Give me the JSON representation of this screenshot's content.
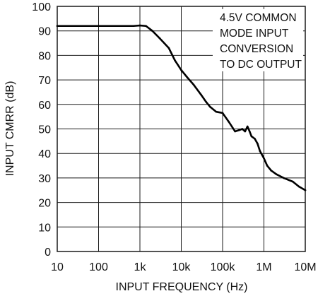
{
  "chart_data": {
    "type": "line",
    "title": "",
    "xlabel": "INPUT FREQUENCY (Hz)",
    "ylabel": "INPUT CMRR (dB)",
    "x_scale": "log",
    "xlim": [
      10,
      10000000
    ],
    "ylim": [
      0,
      100
    ],
    "grid": true,
    "x_ticks": [
      10,
      100,
      1000,
      10000,
      100000,
      1000000,
      10000000
    ],
    "x_tick_labels": [
      "10",
      "100",
      "1k",
      "10k",
      "100k",
      "1M",
      "10M"
    ],
    "y_ticks": [
      0,
      10,
      20,
      30,
      40,
      50,
      60,
      70,
      80,
      90,
      100
    ],
    "y_tick_labels": [
      "0",
      "10",
      "20",
      "30",
      "40",
      "50",
      "60",
      "70",
      "80",
      "90",
      "100"
    ],
    "annotation": [
      "4.5V COMMON",
      "MODE INPUT",
      "CONVERSION",
      "TO DC OUTPUT"
    ],
    "series": [
      {
        "x": [
          10,
          100,
          400,
          700,
          1000,
          1400,
          2000,
          3000,
          5000,
          7000,
          10000,
          14000,
          20000,
          30000,
          40000,
          50000,
          70000,
          100000,
          140000,
          200000,
          250000,
          300000,
          350000,
          400000,
          450000,
          500000,
          600000,
          700000,
          800000,
          1000000,
          1200000,
          1500000,
          2000000,
          3000000,
          5000000,
          7000000,
          10000000
        ],
        "y": [
          92,
          92,
          92,
          92,
          92.2,
          92,
          90,
          87,
          83,
          78,
          74,
          71,
          68,
          64,
          61,
          59,
          57,
          56.5,
          53,
          49,
          49.5,
          50,
          49,
          51,
          49,
          47,
          46,
          44,
          41,
          38,
          35,
          33,
          31.5,
          30,
          28.5,
          26.5,
          25
        ]
      }
    ]
  }
}
